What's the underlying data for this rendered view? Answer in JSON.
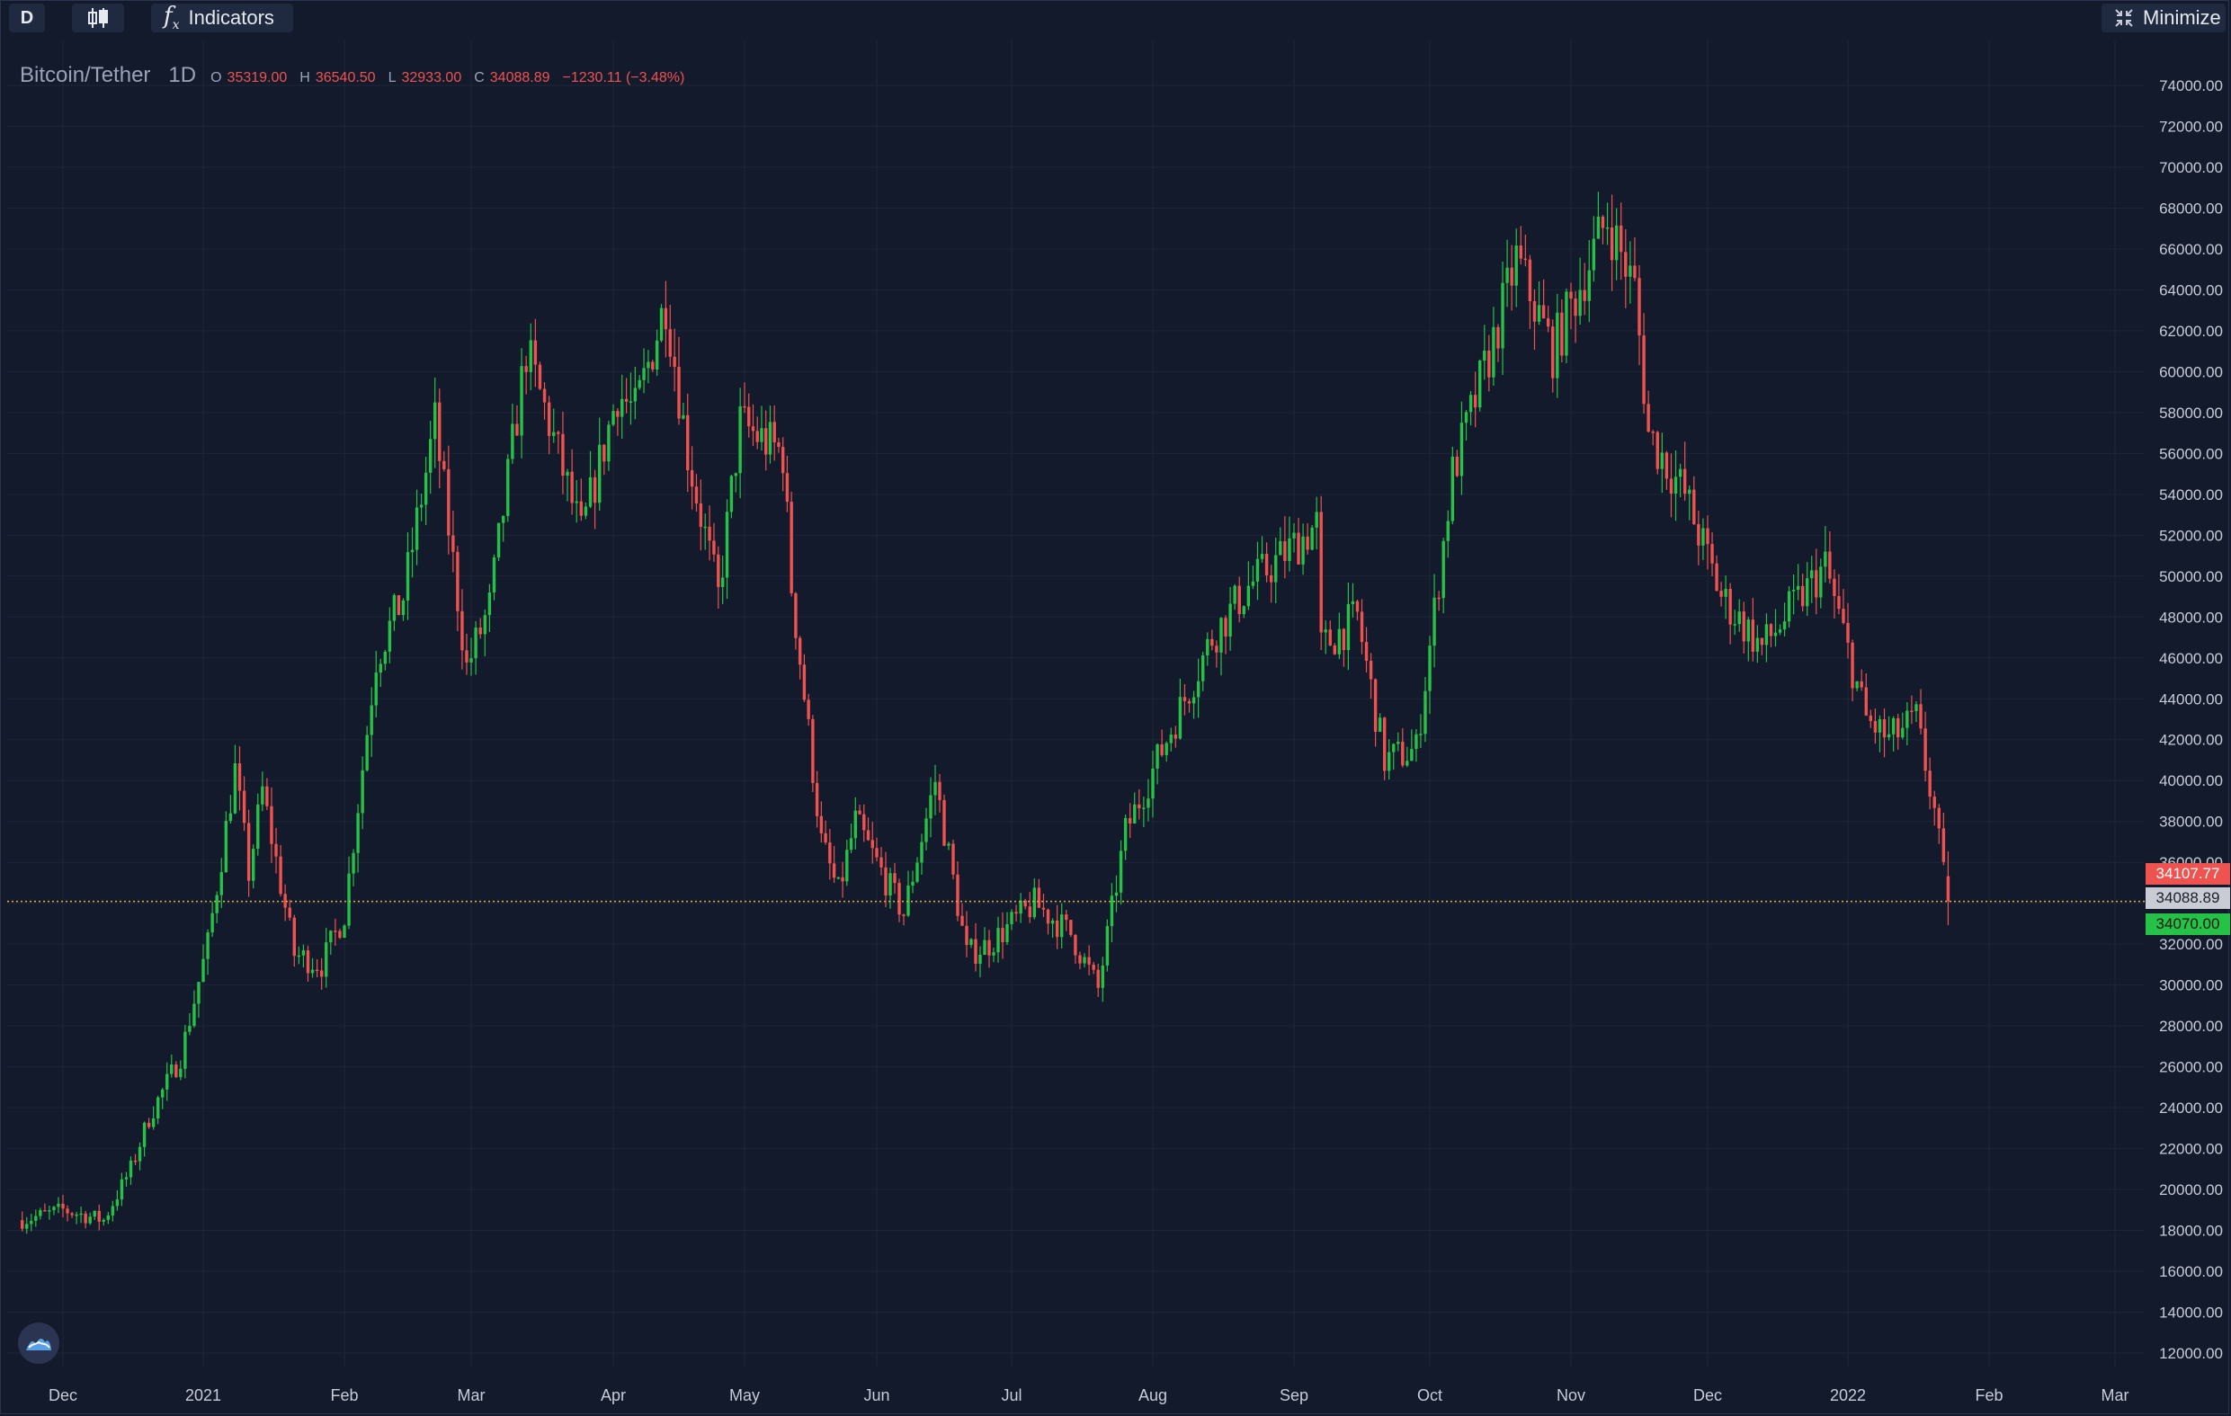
{
  "toolbar": {
    "interval_label": "D",
    "chart_type_icon": "candlestick-icon",
    "indicators_label": "Indicators",
    "minimize_label": "Minimize"
  },
  "legend": {
    "symbol": "Bitcoin/Tether",
    "timeframe": "1D",
    "open_label": "O",
    "open": "35319.00",
    "high_label": "H",
    "high": "36540.50",
    "low_label": "L",
    "low": "32933.00",
    "close_label": "C",
    "close": "34088.89",
    "change": "−1230.11 (−3.48%)"
  },
  "price_tags": {
    "high": "34107.77",
    "close": "34088.89",
    "low": "34070.00"
  },
  "colors": {
    "background": "#131a2c",
    "up": "#26c248",
    "down": "#ef5350",
    "grid": "#1d2538",
    "price_line": "#e3b34a"
  },
  "chart_data": {
    "type": "candlestick",
    "y_ticks": [
      "74000.00",
      "72000.00",
      "70000.00",
      "68000.00",
      "66000.00",
      "64000.00",
      "62000.00",
      "60000.00",
      "58000.00",
      "56000.00",
      "54000.00",
      "52000.00",
      "50000.00",
      "48000.00",
      "46000.00",
      "44000.00",
      "42000.00",
      "40000.00",
      "38000.00",
      "36000.00",
      "34000.00",
      "32000.00",
      "30000.00",
      "28000.00",
      "26000.00",
      "24000.00",
      "22000.00",
      "20000.00",
      "18000.00",
      "16000.00",
      "14000.00",
      "12000.00"
    ],
    "ylim": [
      12000,
      74000
    ],
    "x_ticks": [
      "Dec",
      "2021",
      "Feb",
      "Mar",
      "Apr",
      "May",
      "Jun",
      "Jul",
      "Aug",
      "Sep",
      "Oct",
      "Nov",
      "Dec",
      "2022",
      "Feb",
      "Mar"
    ],
    "xlim": [
      "2020-11-22",
      "2022-03-10"
    ],
    "current_price": 34088.89,
    "series": [
      {
        "date": "2020-11-22",
        "close": 18500
      },
      {
        "date": "2020-12-01",
        "close": 19000
      },
      {
        "date": "2020-12-10",
        "close": 18500
      },
      {
        "date": "2020-12-16",
        "close": 21000
      },
      {
        "date": "2020-12-20",
        "close": 23500
      },
      {
        "date": "2020-12-27",
        "close": 26500
      },
      {
        "date": "2021-01-02",
        "close": 32000
      },
      {
        "date": "2021-01-08",
        "close": 40500
      },
      {
        "date": "2021-01-11",
        "close": 35500
      },
      {
        "date": "2021-01-14",
        "close": 39500
      },
      {
        "date": "2021-01-21",
        "close": 31500
      },
      {
        "date": "2021-01-27",
        "close": 31000
      },
      {
        "date": "2021-02-01",
        "close": 33500
      },
      {
        "date": "2021-02-08",
        "close": 46000
      },
      {
        "date": "2021-02-14",
        "close": 49000
      },
      {
        "date": "2021-02-21",
        "close": 57500
      },
      {
        "date": "2021-02-28",
        "close": 45500
      },
      {
        "date": "2021-03-05",
        "close": 48500
      },
      {
        "date": "2021-03-13",
        "close": 61000
      },
      {
        "date": "2021-03-18",
        "close": 57500
      },
      {
        "date": "2021-03-25",
        "close": 52000
      },
      {
        "date": "2021-04-02",
        "close": 59000
      },
      {
        "date": "2021-04-06",
        "close": 58000
      },
      {
        "date": "2021-04-13",
        "close": 63500
      },
      {
        "date": "2021-04-18",
        "close": 56000
      },
      {
        "date": "2021-04-25",
        "close": 49000
      },
      {
        "date": "2021-04-30",
        "close": 57500
      },
      {
        "date": "2021-05-03",
        "close": 57000
      },
      {
        "date": "2021-05-10",
        "close": 56000
      },
      {
        "date": "2021-05-12",
        "close": 49500
      },
      {
        "date": "2021-05-19",
        "close": 37000
      },
      {
        "date": "2021-05-23",
        "close": 34500
      },
      {
        "date": "2021-05-27",
        "close": 38000
      },
      {
        "date": "2021-06-07",
        "close": 33500
      },
      {
        "date": "2021-06-14",
        "close": 40000
      },
      {
        "date": "2021-06-21",
        "close": 31500
      },
      {
        "date": "2021-06-26",
        "close": 32000
      },
      {
        "date": "2021-07-06",
        "close": 34000
      },
      {
        "date": "2021-07-14",
        "close": 32500
      },
      {
        "date": "2021-07-20",
        "close": 29800
      },
      {
        "date": "2021-07-26",
        "close": 37500
      },
      {
        "date": "2021-08-06",
        "close": 43000
      },
      {
        "date": "2021-08-14",
        "close": 47000
      },
      {
        "date": "2021-08-22",
        "close": 49500
      },
      {
        "date": "2021-09-06",
        "close": 52500
      },
      {
        "date": "2021-09-07",
        "close": 46500
      },
      {
        "date": "2021-09-15",
        "close": 48000
      },
      {
        "date": "2021-09-21",
        "close": 41000
      },
      {
        "date": "2021-09-28",
        "close": 41500
      },
      {
        "date": "2021-10-06",
        "close": 55000
      },
      {
        "date": "2021-10-15",
        "close": 61500
      },
      {
        "date": "2021-10-20",
        "close": 65500
      },
      {
        "date": "2021-10-28",
        "close": 61000
      },
      {
        "date": "2021-11-09",
        "close": 67500
      },
      {
        "date": "2021-11-15",
        "close": 64000
      },
      {
        "date": "2021-11-18",
        "close": 57000
      },
      {
        "date": "2021-11-26",
        "close": 54000
      },
      {
        "date": "2021-12-04",
        "close": 49000
      },
      {
        "date": "2021-12-13",
        "close": 46500
      },
      {
        "date": "2021-12-27",
        "close": 50500
      },
      {
        "date": "2022-01-05",
        "close": 43000
      },
      {
        "date": "2022-01-10",
        "close": 42000
      },
      {
        "date": "2022-01-16",
        "close": 43000
      },
      {
        "date": "2022-01-20",
        "close": 38500
      },
      {
        "date": "2022-01-22",
        "close": 35300
      },
      {
        "date": "2022-01-23",
        "close": 34088.89
      }
    ]
  }
}
